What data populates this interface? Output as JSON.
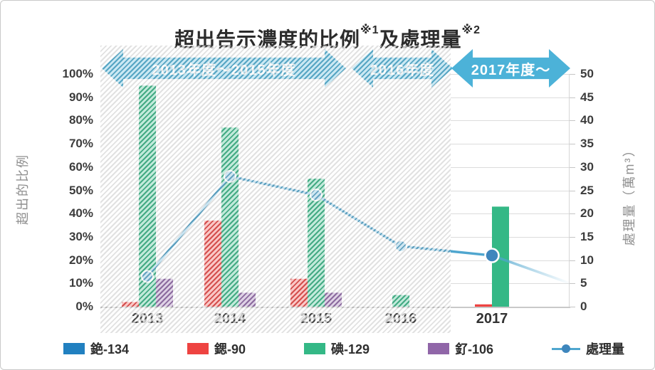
{
  "title": {
    "main": "超出告示濃度的比例",
    "sup1": "※1",
    "mid": "及處理量",
    "sup2": "※2"
  },
  "left_axis": {
    "label": "超出的比例",
    "ticks": [
      "100%",
      "90%",
      "80%",
      "70%",
      "60%",
      "50%",
      "40%",
      "30%",
      "20%",
      "10%",
      "0%"
    ]
  },
  "right_axis": {
    "label": "處理量（萬m³）",
    "ticks": [
      "50",
      "45",
      "40",
      "35",
      "30",
      "25",
      "20",
      "15",
      "10",
      "5",
      "0"
    ]
  },
  "banners": [
    {
      "label": "2013年度～2015年度",
      "hatched": true
    },
    {
      "label": "2016年度",
      "hatched": true
    },
    {
      "label": "2017年度～",
      "hatched": false
    }
  ],
  "legend": [
    {
      "label": "銫-134",
      "color": "#2180c0",
      "type": "swatch"
    },
    {
      "label": "鍶-90",
      "color": "#ee4341",
      "type": "swatch"
    },
    {
      "label": "碘-129",
      "color": "#34b886",
      "type": "swatch"
    },
    {
      "label": "釕-106",
      "color": "#9066a8",
      "type": "swatch"
    },
    {
      "label": "處理量",
      "color": "#4fa6cf",
      "type": "line"
    }
  ],
  "colors": {
    "banner": "#4cb2d8",
    "line": "#4fa6cf",
    "marker_hatched": "#60aed4",
    "marker_solid": "#3e86bd",
    "grid": "#dcdcdc"
  },
  "chart_data": {
    "type": "bar+line",
    "categories": [
      "2013",
      "2014",
      "2015",
      "2016",
      "2017"
    ],
    "bar_series": [
      {
        "name": "銫-134",
        "color": "#2180c0",
        "values": [
          0,
          0,
          0,
          0,
          0
        ]
      },
      {
        "name": "鍶-90",
        "color": "#ee4341",
        "values": [
          2,
          37,
          12,
          0,
          1
        ]
      },
      {
        "name": "碘-129",
        "color": "#34b886",
        "values": [
          95,
          77,
          55,
          5,
          43
        ]
      },
      {
        "name": "釕-106",
        "color": "#9066a8",
        "values": [
          12,
          6,
          6,
          0,
          0
        ]
      }
    ],
    "bar_unit": "%",
    "line_series": {
      "name": "處理量",
      "axis": "right",
      "unit": "萬m³",
      "values": [
        6.5,
        28,
        24,
        13,
        11
      ],
      "fade_tail_to": 5
    },
    "left_axis_range": {
      "min": 0,
      "max": 100,
      "step": 10
    },
    "right_axis_range": {
      "min": 0,
      "max": 50,
      "step": 5
    },
    "hatched_region_years": [
      "2013",
      "2014",
      "2015",
      "2016"
    ],
    "grid": "horizontal",
    "legend_position": "bottom"
  }
}
